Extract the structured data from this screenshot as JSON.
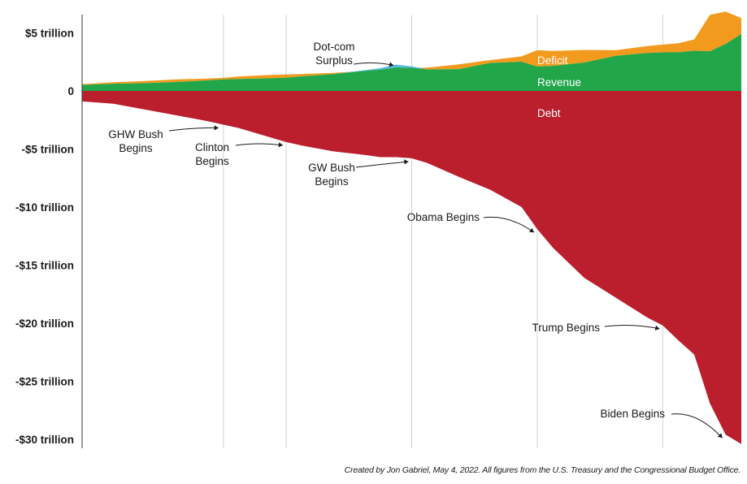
{
  "chart_data": {
    "type": "area",
    "x": [
      1980,
      1982,
      1984,
      1986,
      1988,
      1989,
      1990,
      1992,
      1993,
      1994,
      1996,
      1998,
      1999,
      2000,
      2001,
      2002,
      2004,
      2006,
      2008,
      2009,
      2010,
      2012,
      2014,
      2016,
      2017,
      2018,
      2019,
      2020,
      2021,
      2022
    ],
    "ylim": [
      -30.5,
      6.5
    ],
    "yticks": [
      5,
      0,
      -5,
      -10,
      -15,
      -20,
      -25,
      -30
    ],
    "ytick_labels": [
      "$5 trillion",
      "0",
      "-$5 trillion",
      "-$10 trillion",
      "-$15 trillion",
      "-$20 trillion",
      "-$25 trillion",
      "-$30 trillion"
    ],
    "series": [
      {
        "name": "Debt",
        "color": "#bb1e2d",
        "values": [
          -0.9,
          -1.1,
          -1.6,
          -2.1,
          -2.6,
          -2.9,
          -3.2,
          -4.0,
          -4.4,
          -4.7,
          -5.2,
          -5.5,
          -5.7,
          -5.7,
          -5.8,
          -6.2,
          -7.4,
          -8.5,
          -10.0,
          -11.9,
          -13.5,
          -16.1,
          -17.8,
          -19.5,
          -20.2,
          -21.5,
          -22.7,
          -26.9,
          -29.6,
          -30.4
        ]
      },
      {
        "name": "Revenue",
        "color": "#21a64a",
        "values": [
          0.52,
          0.62,
          0.67,
          0.77,
          0.91,
          0.99,
          1.03,
          1.09,
          1.15,
          1.26,
          1.45,
          1.72,
          1.83,
          2.03,
          1.99,
          1.85,
          1.88,
          2.41,
          2.52,
          2.1,
          2.16,
          2.45,
          3.02,
          3.27,
          3.32,
          3.33,
          3.46,
          3.42,
          4.05,
          4.9
        ]
      },
      {
        "name": "Deficit",
        "color": "#f29a1d",
        "values": [
          0.07,
          0.13,
          0.19,
          0.22,
          0.16,
          0.15,
          0.22,
          0.29,
          0.26,
          0.2,
          0.11,
          0,
          0,
          0,
          0,
          0.16,
          0.41,
          0.25,
          0.46,
          1.41,
          1.29,
          1.08,
          0.49,
          0.59,
          0.67,
          0.78,
          0.98,
          3.13,
          2.78,
          1.38
        ]
      },
      {
        "name": "Surplus",
        "color": "#56b8e4",
        "values": [
          0,
          0,
          0,
          0,
          0,
          0,
          0,
          0,
          0,
          0,
          0,
          0.07,
          0.13,
          0.24,
          0.13,
          0,
          0,
          0,
          0,
          0,
          0,
          0,
          0,
          0,
          0,
          0,
          0,
          0,
          0,
          0
        ]
      }
    ],
    "series_labels": {
      "deficit": "Deficit",
      "revenue": "Revenue",
      "debt": "Debt"
    },
    "markers": [
      {
        "year": 1989,
        "lines": [
          "GHW Bush",
          "Begins"
        ]
      },
      {
        "year": 1993,
        "lines": [
          "Clinton",
          "Begins"
        ]
      },
      {
        "year": 2001,
        "lines": [
          "GW Bush",
          "Begins"
        ]
      },
      {
        "year": 2009,
        "lines": [
          "Obama Begins"
        ]
      },
      {
        "year": 2017,
        "lines": [
          "Trump Begins"
        ]
      },
      {
        "year": 2021,
        "lines": [
          "Biden Begins"
        ]
      }
    ],
    "annotations": [
      {
        "year": 2000,
        "lines": [
          "Dot-com",
          "Surplus"
        ]
      }
    ]
  },
  "credit": "Created by Jon Gabriel, May 4, 2022. All figures from the U.S. Treasury and the Congressional Budget Office."
}
